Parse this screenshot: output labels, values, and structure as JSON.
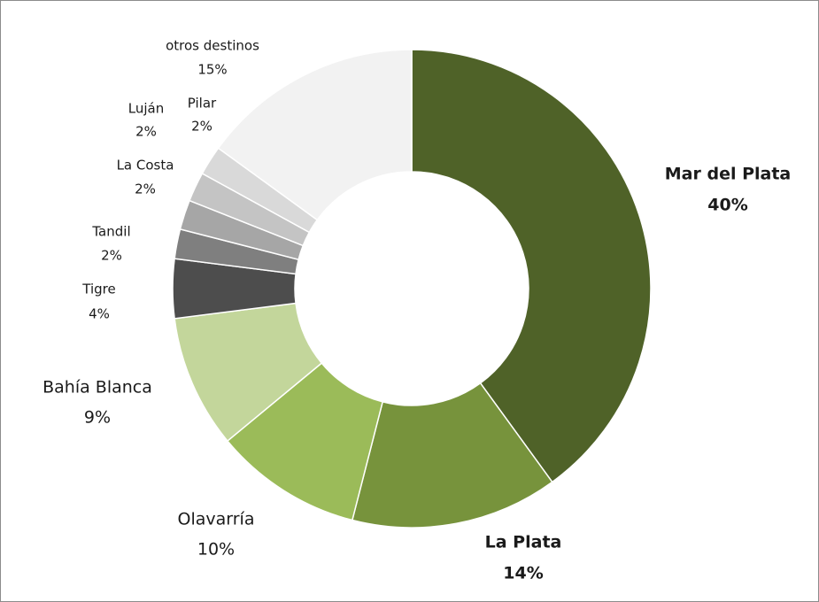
{
  "chart_data": {
    "type": "donut",
    "categories": [
      "Mar del Plata",
      "La Plata",
      "Olavarría",
      "Bahía Blanca",
      "Tigre",
      "Tandil",
      "La Costa",
      "Luján",
      "Pilar",
      "otros destinos"
    ],
    "values": [
      40,
      14,
      10,
      9,
      4,
      2,
      2,
      2,
      2,
      15
    ],
    "value_labels": [
      "40%",
      "14%",
      "10%",
      "9%",
      "4%",
      "2%",
      "2%",
      "2%",
      "2%",
      "15%"
    ],
    "colors": [
      "#4f6228",
      "#77933c",
      "#9bbb59",
      "#c3d69b",
      "#4d4d4d",
      "#7f7f7f",
      "#a6a6a6",
      "#c4c4c4",
      "#d9d9d9",
      "#f2f2f2"
    ]
  }
}
